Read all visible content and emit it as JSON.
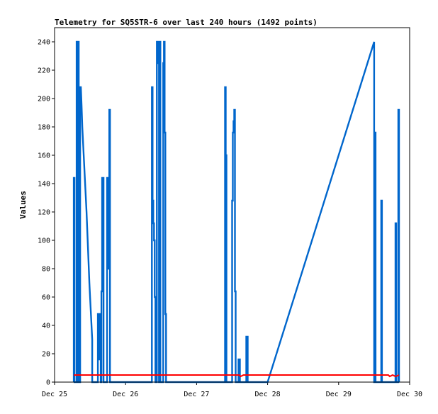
{
  "chart_data": {
    "type": "line",
    "title": "Telemetry for SQ5STR-6 over last 240 hours (1492 points)",
    "xlabel": "",
    "ylabel": "Values",
    "xlim": [
      0,
      5
    ],
    "ylim": [
      0,
      250
    ],
    "x_ticks": [
      {
        "label": "Dec 25",
        "value": 0
      },
      {
        "label": "Dec 26",
        "value": 1
      },
      {
        "label": "Dec 27",
        "value": 2
      },
      {
        "label": "Dec 28",
        "value": 3
      },
      {
        "label": "Dec 29",
        "value": 4
      },
      {
        "label": "Dec 30",
        "value": 5
      }
    ],
    "y_ticks": [
      0,
      20,
      40,
      60,
      80,
      100,
      120,
      140,
      160,
      180,
      200,
      220,
      240
    ],
    "grid": false,
    "legend": "none",
    "series": [
      {
        "color": "#0066cc",
        "points": [
          [
            0.27,
            0
          ],
          [
            0.27,
            144
          ],
          [
            0.28,
            144
          ],
          [
            0.28,
            0
          ],
          [
            0.31,
            0
          ],
          [
            0.31,
            240
          ],
          [
            0.32,
            240
          ],
          [
            0.32,
            0
          ],
          [
            0.33,
            0
          ],
          [
            0.33,
            240
          ],
          [
            0.34,
            240
          ],
          [
            0.34,
            0
          ],
          [
            0.36,
            0
          ],
          [
            0.36,
            208
          ],
          [
            0.37,
            208
          ],
          [
            0.38,
            195
          ],
          [
            0.39,
            180
          ],
          [
            0.41,
            160
          ],
          [
            0.43,
            140
          ],
          [
            0.45,
            120
          ],
          [
            0.47,
            95
          ],
          [
            0.49,
            70
          ],
          [
            0.51,
            50
          ],
          [
            0.53,
            30
          ],
          [
            0.53,
            0
          ],
          [
            0.61,
            0
          ],
          [
            0.61,
            48
          ],
          [
            0.63,
            48
          ],
          [
            0.63,
            16
          ],
          [
            0.64,
            16
          ],
          [
            0.64,
            48
          ],
          [
            0.65,
            48
          ],
          [
            0.65,
            0
          ],
          [
            0.66,
            0
          ],
          [
            0.66,
            64
          ],
          [
            0.67,
            64
          ],
          [
            0.67,
            144
          ],
          [
            0.69,
            144
          ],
          [
            0.69,
            0
          ],
          [
            0.74,
            0
          ],
          [
            0.74,
            144
          ],
          [
            0.75,
            144
          ],
          [
            0.75,
            80
          ],
          [
            0.76,
            80
          ],
          [
            0.76,
            128
          ],
          [
            0.77,
            128
          ],
          [
            0.77,
            192
          ],
          [
            0.78,
            192
          ],
          [
            0.78,
            0
          ],
          [
            1.37,
            0
          ],
          [
            1.37,
            208
          ],
          [
            1.38,
            208
          ],
          [
            1.38,
            128
          ],
          [
            1.39,
            128
          ],
          [
            1.39,
            112
          ],
          [
            1.4,
            112
          ],
          [
            1.4,
            100
          ],
          [
            1.41,
            100
          ],
          [
            1.41,
            60
          ],
          [
            1.42,
            60
          ],
          [
            1.42,
            0
          ],
          [
            1.44,
            0
          ],
          [
            1.44,
            240
          ],
          [
            1.45,
            240
          ],
          [
            1.45,
            225
          ],
          [
            1.46,
            225
          ],
          [
            1.46,
            240
          ],
          [
            1.47,
            240
          ],
          [
            1.47,
            0
          ],
          [
            1.48,
            0
          ],
          [
            1.48,
            240
          ],
          [
            1.49,
            240
          ],
          [
            1.49,
            0
          ],
          [
            1.53,
            0
          ],
          [
            1.53,
            225
          ],
          [
            1.54,
            225
          ],
          [
            1.54,
            240
          ],
          [
            1.55,
            240
          ],
          [
            1.55,
            176
          ],
          [
            1.56,
            176
          ],
          [
            1.56,
            48
          ],
          [
            1.57,
            48
          ],
          [
            1.57,
            0
          ],
          [
            2.4,
            0
          ],
          [
            2.4,
            208
          ],
          [
            2.41,
            208
          ],
          [
            2.41,
            160
          ],
          [
            2.42,
            160
          ],
          [
            2.42,
            0
          ],
          [
            2.5,
            0
          ],
          [
            2.5,
            128
          ],
          [
            2.51,
            128
          ],
          [
            2.51,
            176
          ],
          [
            2.52,
            176
          ],
          [
            2.52,
            184
          ],
          [
            2.53,
            184
          ],
          [
            2.53,
            192
          ],
          [
            2.54,
            192
          ],
          [
            2.54,
            64
          ],
          [
            2.55,
            64
          ],
          [
            2.55,
            0
          ],
          [
            2.59,
            0
          ],
          [
            2.59,
            16
          ],
          [
            2.61,
            16
          ],
          [
            2.61,
            0
          ],
          [
            2.7,
            0
          ],
          [
            2.7,
            32
          ],
          [
            2.72,
            32
          ],
          [
            2.72,
            0
          ],
          [
            3.0,
            0
          ],
          [
            4.5,
            240
          ],
          [
            4.5,
            0
          ],
          [
            4.51,
            0
          ],
          [
            4.51,
            176
          ],
          [
            4.52,
            176
          ],
          [
            4.52,
            0
          ],
          [
            4.6,
            0
          ],
          [
            4.6,
            128
          ],
          [
            4.61,
            128
          ],
          [
            4.61,
            0
          ],
          [
            4.8,
            0
          ],
          [
            4.8,
            112
          ],
          [
            4.81,
            112
          ],
          [
            4.81,
            0
          ],
          [
            4.84,
            0
          ],
          [
            4.84,
            192
          ],
          [
            4.85,
            192
          ],
          [
            4.85,
            0
          ]
        ]
      },
      {
        "color": "#ff0000",
        "points": [
          [
            0.27,
            5
          ],
          [
            2.6,
            5
          ],
          [
            2.62,
            4
          ],
          [
            2.66,
            5
          ],
          [
            4.7,
            5
          ],
          [
            4.72,
            4
          ],
          [
            4.76,
            5
          ],
          [
            4.8,
            4
          ],
          [
            4.85,
            5
          ]
        ]
      }
    ]
  }
}
